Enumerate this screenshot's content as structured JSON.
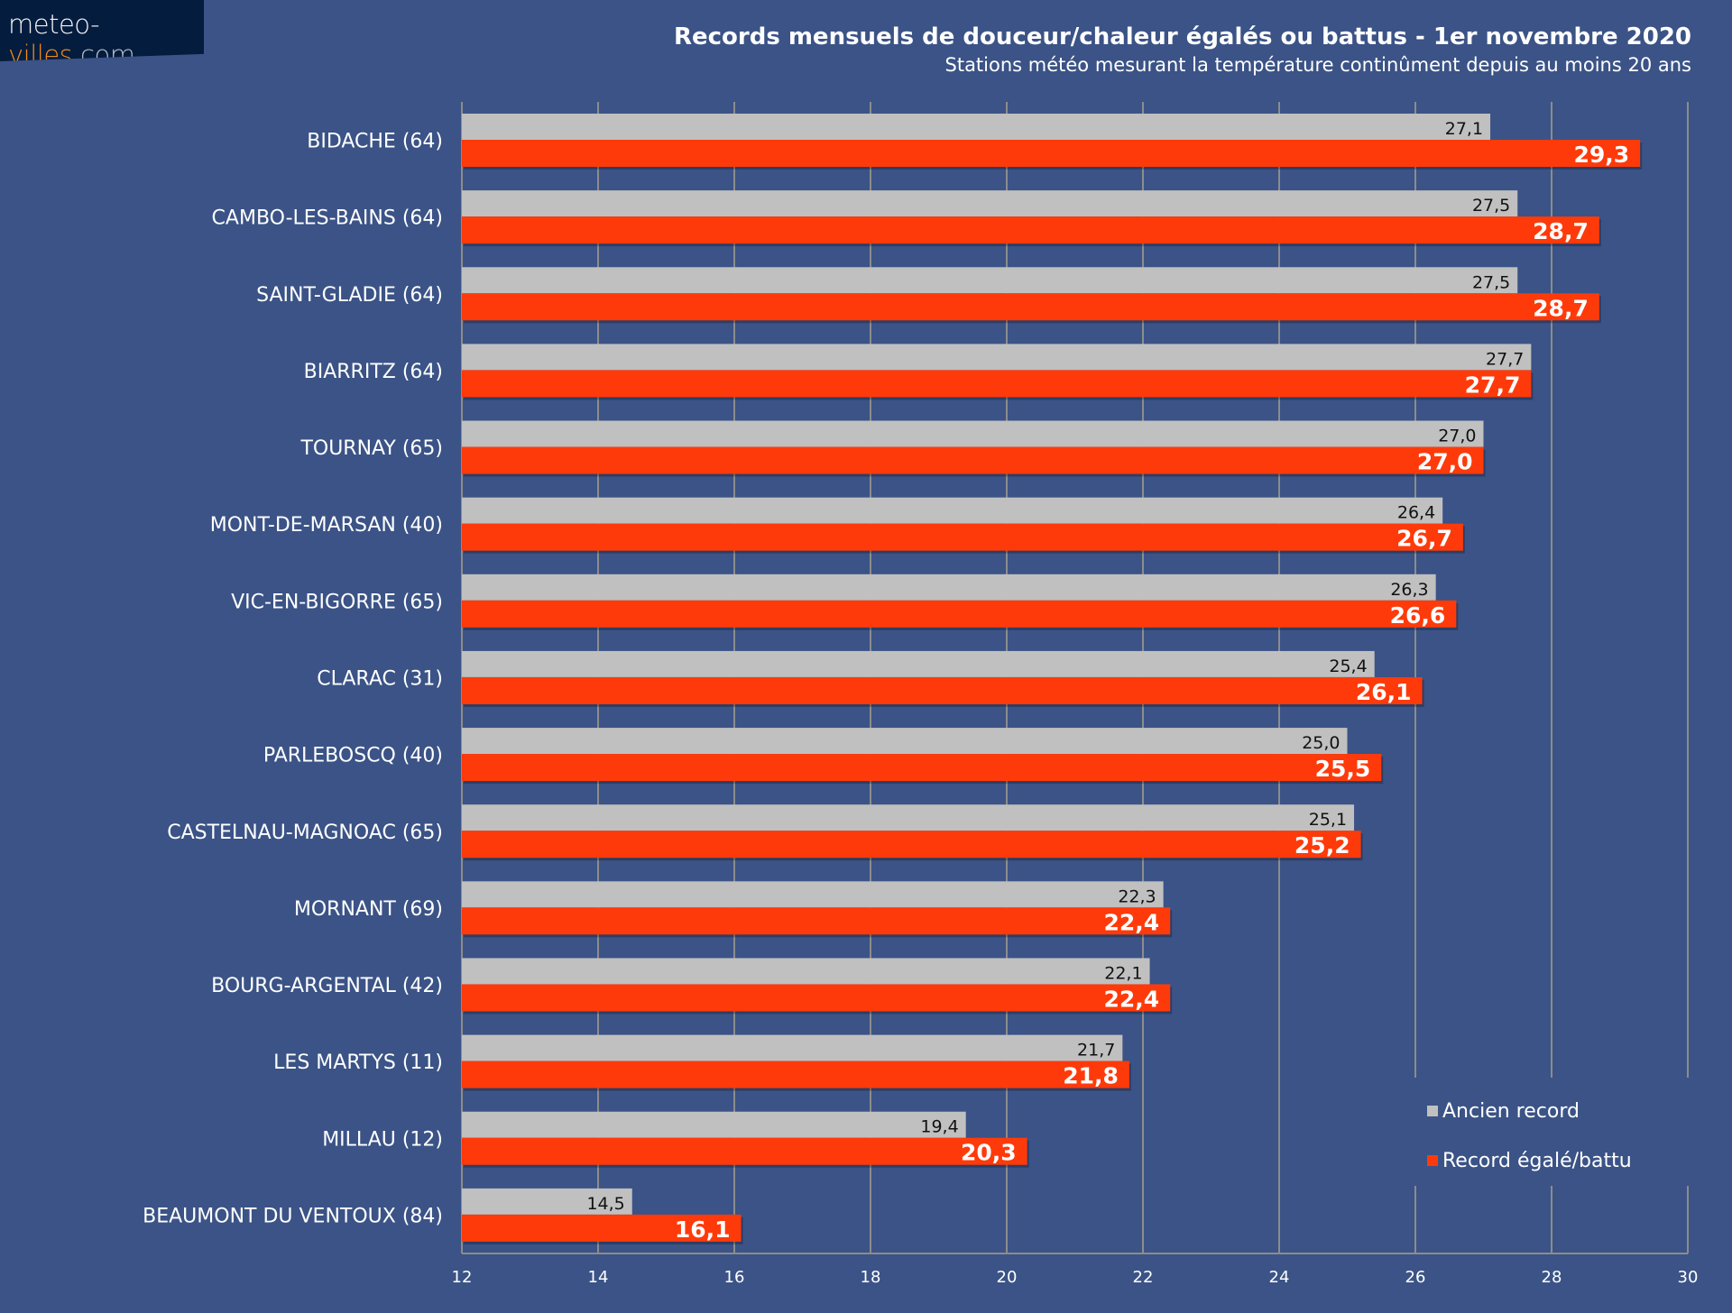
{
  "logo": {
    "part1": "meteo-",
    "part2": "villes",
    "part3": ".com"
  },
  "chart_data": {
    "type": "bar",
    "orientation": "horizontal",
    "title": "Records mensuels de douceur/chaleur égalés ou battus - 1er novembre 2020",
    "subtitle": "Stations météo mesurant la température continûment depuis au moins 20 ans",
    "categories": [
      "BIDACHE (64)",
      "CAMBO-LES-BAINS (64)",
      "SAINT-GLADIE (64)",
      "BIARRITZ (64)",
      "TOURNAY (65)",
      "MONT-DE-MARSAN (40)",
      "VIC-EN-BIGORRE (65)",
      "CLARAC (31)",
      "PARLEBOSCQ (40)",
      "CASTELNAU-MAGNOAC (65)",
      "MORNANT (69)",
      "BOURG-ARGENTAL (42)",
      "LES MARTYS (11)",
      "MILLAU (12)",
      "BEAUMONT DU VENTOUX (84)"
    ],
    "series": [
      {
        "name": "Ancien record",
        "color": "#c0c0c0",
        "values": [
          27.1,
          27.5,
          27.5,
          27.7,
          27.0,
          26.4,
          26.3,
          25.4,
          25.0,
          25.1,
          22.3,
          22.1,
          21.7,
          19.4,
          14.5
        ],
        "labels": [
          "27,1",
          "27,5",
          "27,5",
          "27,7",
          "27,0",
          "26,4",
          "26,3",
          "25,4",
          "25,0",
          "25,1",
          "22,3",
          "22,1",
          "21,7",
          "19,4",
          "14,5"
        ]
      },
      {
        "name": "Record égalé/battu",
        "color": "#ff3a0a",
        "values": [
          29.3,
          28.7,
          28.7,
          27.7,
          27.0,
          26.7,
          26.6,
          26.1,
          25.5,
          25.2,
          22.4,
          22.4,
          21.8,
          20.3,
          16.1
        ],
        "labels": [
          "29,3",
          "28,7",
          "28,7",
          "27,7",
          "27,0",
          "26,7",
          "26,6",
          "26,1",
          "25,5",
          "25,2",
          "22,4",
          "22,4",
          "21,8",
          "20,3",
          "16,1"
        ]
      }
    ],
    "xlim": [
      12,
      30
    ],
    "xticks": [
      12,
      14,
      16,
      18,
      20,
      22,
      24,
      26,
      28,
      30
    ],
    "grid": "vertical",
    "legend": "bottom-right",
    "background": "#3b5386"
  }
}
